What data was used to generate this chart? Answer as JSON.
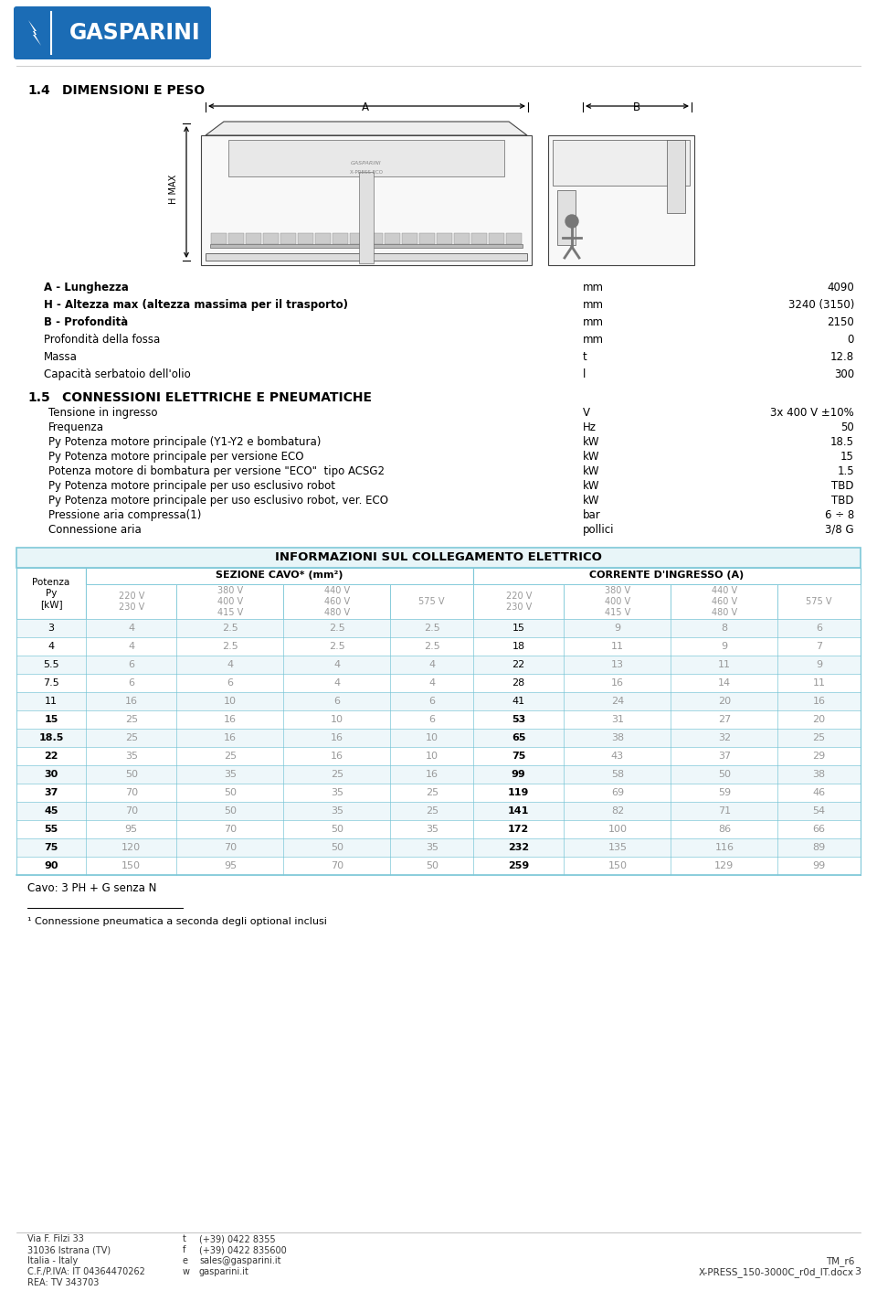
{
  "logo_text": "GASPARINI",
  "section1_title": "1.4   DIMENSIONI E PESO",
  "dim_rows": [
    [
      "A - Lunghezza",
      "mm",
      "4090"
    ],
    [
      "H - Altezza max (altezza massima per il trasporto)",
      "mm",
      "3240 (3150)"
    ],
    [
      "B - Profondità",
      "mm",
      "2150"
    ],
    [
      "Profondità della fossa",
      "mm",
      "0"
    ],
    [
      "Massa",
      "t",
      "12.8"
    ],
    [
      "Capacità serbatoio dell'olio",
      "l",
      "300"
    ]
  ],
  "section2_title": "1.5   CONNESSIONI ELETTRICHE E PNEUMATICHE",
  "conn_rows": [
    [
      "Tensione in ingresso",
      "V",
      "3x 400 V ±10%"
    ],
    [
      "Frequenza",
      "Hz",
      "50"
    ],
    [
      "Py Potenza motore principale (Y1-Y2 e bombatura)",
      "kW",
      "18.5"
    ],
    [
      "Py Potenza motore principale per versione ECO",
      "kW",
      "15"
    ],
    [
      "Potenza motore di bombatura per versione \"ECO\"  tipo ACSG2",
      "kW",
      "1.5"
    ],
    [
      "Py Potenza motore principale per uso esclusivo robot",
      "kW",
      "TBD"
    ],
    [
      "Py Potenza motore principale per uso esclusivo robot, ver. ECO",
      "kW",
      "TBD"
    ],
    [
      "Pressione aria compressa(1)",
      "bar",
      "6 ÷ 8"
    ],
    [
      "Connessione aria",
      "pollici",
      "3/8 G"
    ]
  ],
  "table_title": "INFORMAZIONI SUL COLLEGAMENTO ELETTRICO",
  "voltage_cols": [
    "220 V\n230 V",
    "380 V\n400 V\n415 V",
    "440 V\n460 V\n480 V",
    "575 V",
    "220 V\n230 V",
    "380 V\n400 V\n415 V",
    "440 V\n460 V\n480 V",
    "575 V"
  ],
  "table_rows": [
    [
      "3",
      "4",
      "2.5",
      "2.5",
      "2.5",
      "15",
      "9",
      "8",
      "6"
    ],
    [
      "4",
      "4",
      "2.5",
      "2.5",
      "2.5",
      "18",
      "11",
      "9",
      "7"
    ],
    [
      "5.5",
      "6",
      "4",
      "4",
      "4",
      "22",
      "13",
      "11",
      "9"
    ],
    [
      "7.5",
      "6",
      "6",
      "4",
      "4",
      "28",
      "16",
      "14",
      "11"
    ],
    [
      "11",
      "16",
      "10",
      "6",
      "6",
      "41",
      "24",
      "20",
      "16"
    ],
    [
      "15",
      "25",
      "16",
      "10",
      "6",
      "53",
      "31",
      "27",
      "20"
    ],
    [
      "18.5",
      "25",
      "16",
      "16",
      "10",
      "65",
      "38",
      "32",
      "25"
    ],
    [
      "22",
      "35",
      "25",
      "16",
      "10",
      "75",
      "43",
      "37",
      "29"
    ],
    [
      "30",
      "50",
      "35",
      "25",
      "16",
      "99",
      "58",
      "50",
      "38"
    ],
    [
      "37",
      "70",
      "50",
      "35",
      "25",
      "119",
      "69",
      "59",
      "46"
    ],
    [
      "45",
      "70",
      "50",
      "35",
      "25",
      "141",
      "82",
      "71",
      "54"
    ],
    [
      "55",
      "95",
      "70",
      "50",
      "35",
      "172",
      "100",
      "86",
      "66"
    ],
    [
      "75",
      "120",
      "70",
      "50",
      "35",
      "232",
      "135",
      "116",
      "89"
    ],
    [
      "90",
      "150",
      "95",
      "70",
      "50",
      "259",
      "150",
      "129",
      "99"
    ]
  ],
  "bold_py": [
    "15",
    "18.5",
    "22",
    "30",
    "37",
    "45",
    "55",
    "75",
    "90"
  ],
  "bold_col5": [
    "15",
    "18.5",
    "22",
    "30",
    "37",
    "45",
    "55",
    "75",
    "90"
  ],
  "table_note": "Cavo: 3 PH + G senza N",
  "footnote": "¹ Connessione pneumatica a seconda degli optional inclusi",
  "footer_left": [
    "Via F. Filzi 33",
    "31036 Istrana (TV)",
    "Italia - Italy",
    "C.F./P.IVA: IT 04364470262",
    "REA: TV 343703"
  ],
  "footer_mid_keys": [
    "t",
    "f",
    "e",
    "w"
  ],
  "footer_mid_vals": [
    "(+39) 0422 8355",
    "(+39) 0422 835600",
    "sales@gasparini.it",
    "gasparini.it"
  ],
  "footer_right1": "TM_r6",
  "footer_right2": "X-PRESS_150-3000C_r0d_IT.docx",
  "footer_page": "3",
  "logo_blue": "#1B6CB5",
  "table_border_color": "#7EC8D8",
  "table_title_bg": "#E8F5F8",
  "gray_text": "#999999"
}
